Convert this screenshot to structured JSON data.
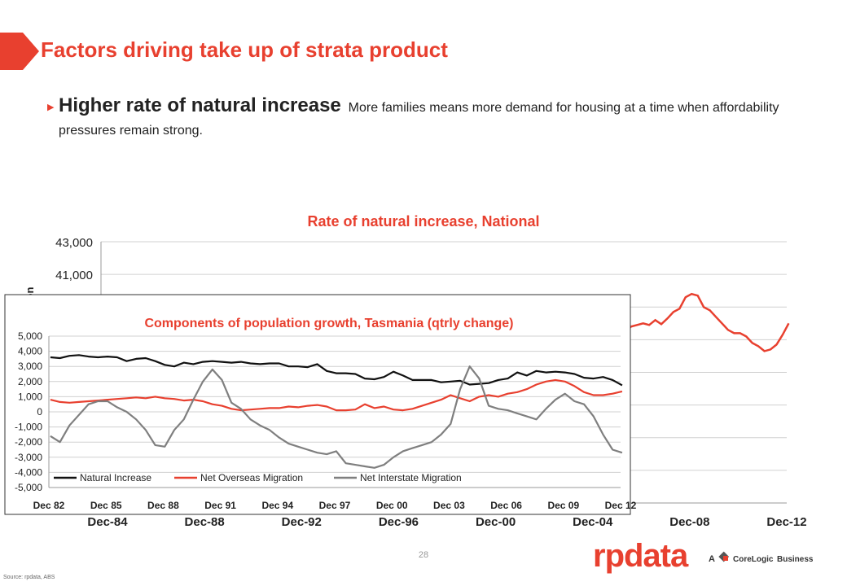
{
  "slide": {
    "title": "Factors driving take up of strata product",
    "bullet_heading": "Higher rate of natural increase",
    "bullet_text": "More families means more demand for housing at a time when affordability pressures remain strong.",
    "page_number": "28",
    "source": "Source: rpdata, ABS",
    "logo_text": "rpdata",
    "logo_prefix": "A",
    "logo_company": "CoreLogic",
    "logo_suffix": "Business",
    "accent_color": "#e8402f"
  },
  "chart_data": [
    {
      "type": "line",
      "title": "Rate of natural increase, National",
      "ylabel": "ion",
      "xlabel": "",
      "y_tick_labels": [
        "43,000",
        "41,000"
      ],
      "x_tick_labels": [
        "Dec-84",
        "Dec-88",
        "Dec-92",
        "Dec-96",
        "Dec-00",
        "Dec-04",
        "Dec-08",
        "Dec-12"
      ],
      "ylim": [
        27000,
        43000
      ],
      "grid": true,
      "series": [
        {
          "name": "",
          "color": "#e8402f",
          "x": [
            2004.5,
            2004.75,
            2005.0,
            2005.25,
            2005.5,
            2005.75,
            2006.0,
            2006.25,
            2006.5,
            2006.75,
            2007.0,
            2007.25,
            2007.5,
            2007.75,
            2008.0,
            2008.25,
            2008.5,
            2008.75,
            2009.0,
            2009.25,
            2009.5,
            2009.75,
            2010.0,
            2010.25,
            2010.5,
            2010.75,
            2011.0,
            2011.25,
            2011.5,
            2011.75,
            2012.0,
            2012.25,
            2012.5,
            2012.75,
            2013.0
          ],
          "values": [
            33600,
            34000,
            34600,
            35400,
            36300,
            37300,
            37500,
            37400,
            37800,
            37900,
            38000,
            37900,
            38200,
            37950,
            38300,
            38700,
            38900,
            39600,
            39800,
            39700,
            39000,
            38800,
            38400,
            38000,
            37600,
            37400,
            37400,
            37200,
            36800,
            36600,
            36300,
            36400,
            36700,
            37300,
            38000
          ]
        }
      ]
    },
    {
      "type": "line",
      "title": "Components of population growth, Tasmania (qtrly change)",
      "xlabel": "",
      "ylabel": "",
      "ylim": [
        -5000,
        5000
      ],
      "y_ticks": [
        5000,
        4000,
        3000,
        2000,
        1000,
        0,
        -1000,
        -2000,
        -3000,
        -4000,
        -5000
      ],
      "y_tick_labels": [
        "5,000",
        "4,000",
        "3,000",
        "2,000",
        "1,000",
        "0",
        "-1,000",
        "-2,000",
        "-3,000",
        "-4,000",
        "-5,000"
      ],
      "x_tick_labels": [
        "Dec 82",
        "Dec 85",
        "Dec 88",
        "Dec 91",
        "Dec 94",
        "Dec 97",
        "Dec 00",
        "Dec 03",
        "Dec 06",
        "Dec 09",
        "Dec 12"
      ],
      "x_ticks": [
        1982.92,
        1985.92,
        1988.92,
        1991.92,
        1994.92,
        1997.92,
        2000.92,
        2003.92,
        2006.92,
        2009.92,
        2012.92
      ],
      "xlim": [
        1982.92,
        2012.92
      ],
      "grid": true,
      "legend_position": "bottom-left",
      "series": [
        {
          "name": "Natural Increase",
          "color": "#111111",
          "x": [
            1983,
            1983.5,
            1984,
            1984.5,
            1985,
            1985.5,
            1986,
            1986.5,
            1987,
            1987.5,
            1988,
            1988.5,
            1989,
            1989.5,
            1990,
            1990.5,
            1991,
            1991.5,
            1992,
            1992.5,
            1993,
            1993.5,
            1994,
            1994.5,
            1995,
            1995.5,
            1996,
            1996.5,
            1997,
            1997.5,
            1998,
            1998.5,
            1999,
            1999.5,
            2000,
            2000.5,
            2001,
            2001.5,
            2002,
            2002.5,
            2003,
            2003.5,
            2004,
            2004.5,
            2005,
            2005.5,
            2006,
            2006.5,
            2007,
            2007.5,
            2008,
            2008.5,
            2009,
            2009.5,
            2010,
            2010.5,
            2011,
            2011.5,
            2012,
            2012.5,
            2013
          ],
          "values": [
            3600,
            3550,
            3700,
            3750,
            3650,
            3600,
            3650,
            3600,
            3350,
            3500,
            3550,
            3350,
            3100,
            3000,
            3250,
            3150,
            3300,
            3350,
            3300,
            3250,
            3300,
            3200,
            3150,
            3200,
            3200,
            3000,
            3000,
            2950,
            3150,
            2700,
            2550,
            2550,
            2500,
            2200,
            2150,
            2300,
            2650,
            2400,
            2100,
            2100,
            2100,
            1950,
            2000,
            2050,
            1800,
            1850,
            1900,
            2100,
            2200,
            2600,
            2400,
            2700,
            2600,
            2650,
            2600,
            2500,
            2250,
            2200,
            2300,
            2100,
            1750
          ]
        },
        {
          "name": "Net Overseas Migration",
          "color": "#e8402f",
          "x": [
            1983,
            1983.5,
            1984,
            1984.5,
            1985,
            1985.5,
            1986,
            1986.5,
            1987,
            1987.5,
            1988,
            1988.5,
            1989,
            1989.5,
            1990,
            1990.5,
            1991,
            1991.5,
            1992,
            1992.5,
            1993,
            1993.5,
            1994,
            1994.5,
            1995,
            1995.5,
            1996,
            1996.5,
            1997,
            1997.5,
            1998,
            1998.5,
            1999,
            1999.5,
            2000,
            2000.5,
            2001,
            2001.5,
            2002,
            2002.5,
            2003,
            2003.5,
            2004,
            2004.5,
            2005,
            2005.5,
            2006,
            2006.5,
            2007,
            2007.5,
            2008,
            2008.5,
            2009,
            2009.5,
            2010,
            2010.5,
            2011,
            2011.5,
            2012,
            2012.5,
            2013
          ],
          "values": [
            800,
            650,
            600,
            650,
            700,
            750,
            800,
            850,
            900,
            950,
            900,
            1000,
            900,
            850,
            750,
            800,
            700,
            500,
            400,
            200,
            100,
            150,
            200,
            250,
            250,
            350,
            300,
            400,
            450,
            350,
            100,
            100,
            150,
            500,
            250,
            350,
            150,
            100,
            200,
            400,
            600,
            800,
            1100,
            900,
            700,
            1000,
            1100,
            1000,
            1200,
            1300,
            1500,
            1800,
            2000,
            2100,
            2000,
            1700,
            1300,
            1100,
            1100,
            1200,
            1350
          ]
        },
        {
          "name": "Net Interstate Migration",
          "color": "#7f7f7f",
          "x": [
            1983,
            1983.5,
            1984,
            1984.5,
            1985,
            1985.5,
            1986,
            1986.5,
            1987,
            1987.5,
            1988,
            1988.5,
            1989,
            1989.5,
            1990,
            1990.5,
            1991,
            1991.5,
            1992,
            1992.5,
            1993,
            1993.5,
            1994,
            1994.5,
            1995,
            1995.5,
            1996,
            1996.5,
            1997,
            1997.5,
            1998,
            1998.5,
            1999,
            1999.5,
            2000,
            2000.5,
            2001,
            2001.5,
            2002,
            2002.5,
            2003,
            2003.5,
            2004,
            2004.5,
            2005,
            2005.5,
            2006,
            2006.5,
            2007,
            2007.5,
            2008,
            2008.5,
            2009,
            2009.5,
            2010,
            2010.5,
            2011,
            2011.5,
            2012,
            2012.5,
            2013
          ],
          "values": [
            -1600,
            -2000,
            -900,
            -200,
            500,
            700,
            700,
            300,
            0,
            -500,
            -1200,
            -2200,
            -2300,
            -1200,
            -500,
            800,
            2000,
            2800,
            2100,
            600,
            200,
            -500,
            -900,
            -1200,
            -1700,
            -2100,
            -2300,
            -2500,
            -2700,
            -2800,
            -2600,
            -3400,
            -3500,
            -3600,
            -3700,
            -3500,
            -3000,
            -2600,
            -2400,
            -2200,
            -2000,
            -1500,
            -800,
            1500,
            3000,
            2200,
            400,
            200,
            100,
            -100,
            -300,
            -500,
            200,
            800,
            1200,
            700,
            500,
            -300,
            -1500,
            -2500,
            -2700
          ]
        }
      ]
    }
  ]
}
